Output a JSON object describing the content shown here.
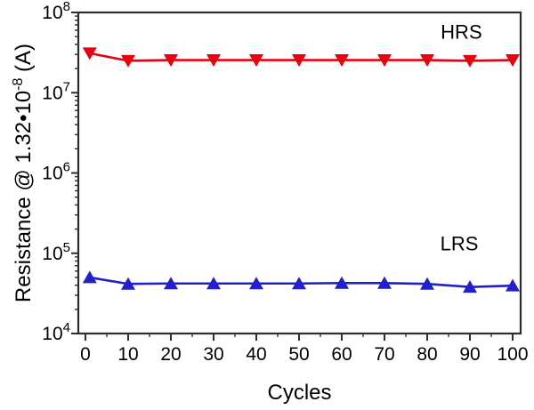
{
  "figure": {
    "background": "#ffffff",
    "frame_color": "#2d2d2d",
    "text_color": "#000000"
  },
  "chart_data": {
    "type": "line",
    "title": "",
    "xlabel": "Cycles",
    "ylabel": "Resistance @ 1.32•10⁻⁸ (A)",
    "ylabel_parts": {
      "prefix": "Resistance @ 1.32•10",
      "superscript": "-8",
      "suffix": " (A)"
    },
    "yscale": "log",
    "xlim": [
      -2,
      102
    ],
    "ylim": [
      10000,
      100000000
    ],
    "grid": false,
    "legend_position": "none",
    "xticks": [
      0,
      10,
      20,
      30,
      40,
      50,
      60,
      70,
      80,
      90,
      100
    ],
    "xminor_step": 5,
    "ytick_exponents": [
      4,
      5,
      6,
      7,
      8
    ],
    "x": [
      1,
      10,
      20,
      30,
      40,
      50,
      60,
      70,
      80,
      90,
      100
    ],
    "series": [
      {
        "name": "HRS",
        "color": "#e8000f",
        "marker": "triangle-down",
        "values": [
          31000000.0,
          25000000.0,
          25500000.0,
          25500000.0,
          25500000.0,
          25500000.0,
          25500000.0,
          25500000.0,
          25500000.0,
          25000000.0,
          25500000.0
        ]
      },
      {
        "name": "LRS",
        "color": "#2121cc",
        "marker": "triangle-up",
        "values": [
          50000.0,
          41500.0,
          42000.0,
          42000.0,
          42000.0,
          42000.0,
          42500.0,
          42500.0,
          41500.0,
          38000.0,
          39500.0
        ]
      }
    ],
    "annotations": [
      {
        "text": "HRS",
        "x": 88,
        "value": 56000000.0
      },
      {
        "text": "LRS",
        "x": 87.5,
        "value": 130000.0
      }
    ]
  }
}
